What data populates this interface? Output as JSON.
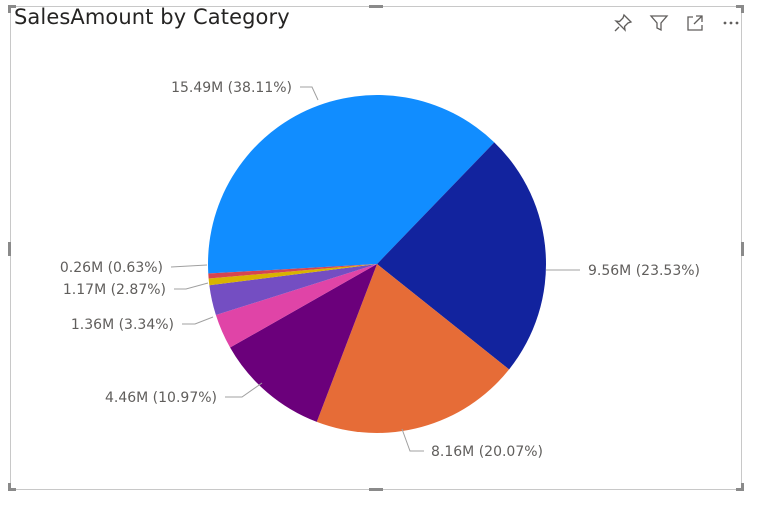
{
  "title": "SalesAmount by Category",
  "icons": [
    "pin-icon",
    "filter-icon",
    "focus-mode-icon",
    "more-options-icon"
  ],
  "colors": {
    "frame": "#c8c8c8",
    "label_text": "#605e5c",
    "leader": "#a0a0a0"
  },
  "chart_data": {
    "type": "pie",
    "title": "SalesAmount by Category",
    "slices": [
      {
        "value": 15.49,
        "percent": 38.11,
        "label": "15.49M (38.11%)",
        "color": "#118DFF"
      },
      {
        "value": 9.56,
        "percent": 23.53,
        "label": "9.56M (23.53%)",
        "color": "#12239E"
      },
      {
        "value": 8.16,
        "percent": 20.07,
        "label": "8.16M (20.07%)",
        "color": "#E66C37"
      },
      {
        "value": 4.46,
        "percent": 10.97,
        "label": "4.46M (10.97%)",
        "color": "#6B007B"
      },
      {
        "value": 1.36,
        "percent": 3.34,
        "label": "1.36M (3.34%)",
        "color": "#E044A7"
      },
      {
        "value": 1.17,
        "percent": 2.87,
        "label": "1.17M (2.87%)",
        "color": "#744EC2"
      },
      {
        "value": 0.26,
        "percent": 0.63,
        "label": "0.26M (0.63%)",
        "color": "#D9B300"
      },
      {
        "value": 0.19,
        "percent": 0.48,
        "label": "",
        "color": "#D64550"
      }
    ]
  }
}
